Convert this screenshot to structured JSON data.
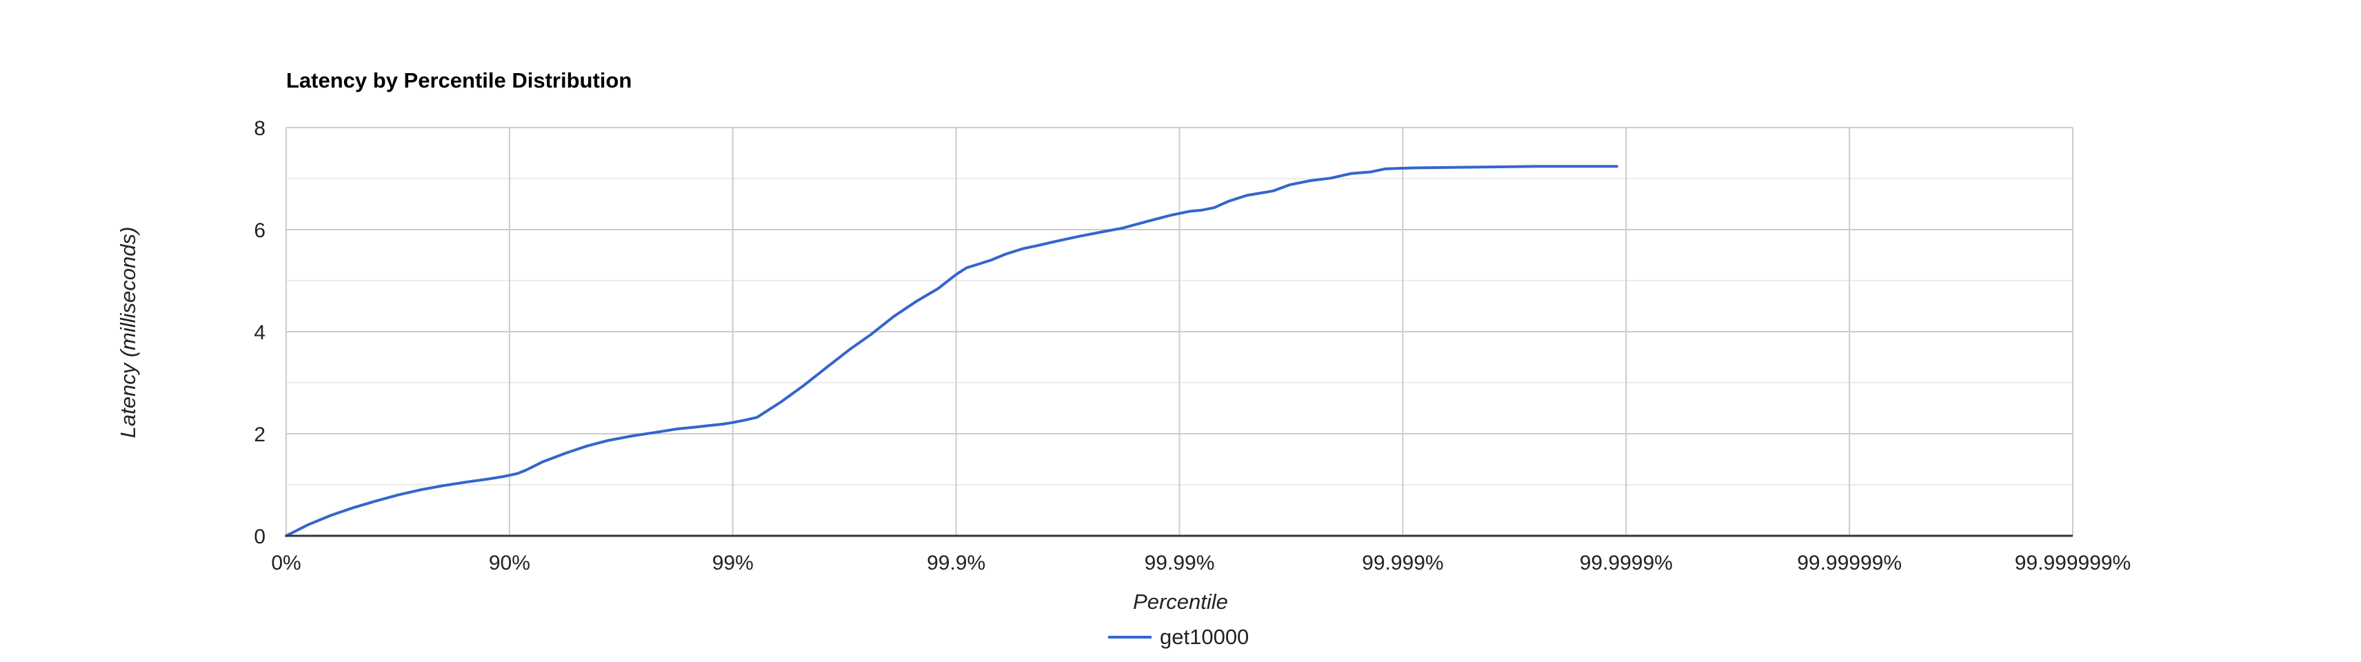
{
  "chart_data": {
    "type": "line",
    "title": "Latency by Percentile Distribution",
    "xlabel": "Percentile",
    "ylabel": "Latency (milliseconds)",
    "x_scale": "log-percentile",
    "x_ticks": [
      "0%",
      "90%",
      "99%",
      "99.9%",
      "99.99%",
      "99.999%",
      "99.9999%",
      "99.99999%",
      "99.999999%"
    ],
    "y_ticks": [
      "0",
      "2",
      "4",
      "6",
      "8"
    ],
    "ylim": [
      0,
      8
    ],
    "grid": true,
    "legend_position": "bottom",
    "colors": {
      "series": "#3366cc",
      "grid_major": "#cccccc",
      "grid_minor": "#ebebeb",
      "baseline": "#333333"
    },
    "series": [
      {
        "name": "get10000",
        "points": [
          [
            "0%",
            0.0
          ],
          [
            "20.6%",
            0.22
          ],
          [
            "36.9%",
            0.4
          ],
          [
            "49.9%",
            0.55
          ],
          [
            "60.2%",
            0.68
          ],
          [
            "68.4%",
            0.8
          ],
          [
            "74.9%",
            0.9
          ],
          [
            "80.0%",
            0.98
          ],
          [
            "84.2%",
            1.05
          ],
          [
            "87.4%",
            1.11
          ],
          [
            "89.3%",
            1.16
          ],
          [
            "90.8%",
            1.22
          ],
          [
            "91.6%",
            1.29
          ],
          [
            "92.9%",
            1.45
          ],
          [
            "94.4%",
            1.62
          ],
          [
            "95.5%",
            1.76
          ],
          [
            "96.4%",
            1.87
          ],
          [
            "97.2%",
            1.96
          ],
          [
            "97.8%",
            2.03
          ],
          [
            "98.2%",
            2.09
          ],
          [
            "98.6%",
            2.14
          ],
          [
            "98.9%",
            2.19
          ],
          [
            "99.0%",
            2.22
          ],
          [
            "99.1%",
            2.26
          ],
          [
            "99.22%",
            2.32
          ],
          [
            "99.39%",
            2.62
          ],
          [
            "99.52%",
            2.95
          ],
          [
            "99.62%",
            3.3
          ],
          [
            "99.70%",
            3.65
          ],
          [
            "99.76%",
            3.95
          ],
          [
            "99.81%",
            4.3
          ],
          [
            "99.85%",
            4.6
          ],
          [
            "99.88%",
            4.85
          ],
          [
            "99.89%",
            4.98
          ],
          [
            "99.90%",
            5.12
          ],
          [
            "99.91%",
            5.25
          ],
          [
            "99.93%",
            5.4
          ],
          [
            "99.94%",
            5.52
          ],
          [
            "99.95%",
            5.63
          ],
          [
            "99.956%",
            5.68
          ],
          [
            "99.965%",
            5.78
          ],
          [
            "99.972%",
            5.87
          ],
          [
            "99.978%",
            5.96
          ],
          [
            "99.982%",
            6.03
          ],
          [
            "99.986%",
            6.16
          ],
          [
            "99.989%",
            6.28
          ],
          [
            "99.991%",
            6.36
          ],
          [
            "99.992%",
            6.38
          ],
          [
            "99.993%",
            6.43
          ],
          [
            "99.994%",
            6.56
          ],
          [
            "99.995%",
            6.67
          ],
          [
            "99.9962%",
            6.76
          ],
          [
            "99.9968%",
            6.88
          ],
          [
            "99.9974%",
            6.96
          ],
          [
            "99.9979%",
            7.01
          ],
          [
            "99.9983%",
            7.1
          ],
          [
            "99.9986%",
            7.13
          ],
          [
            "99.9988%",
            7.19
          ],
          [
            "99.9991%",
            7.21
          ],
          [
            "99.9994%",
            7.22
          ],
          [
            "99.99962%",
            7.23
          ],
          [
            "99.99975%",
            7.24
          ],
          [
            "99.99989%",
            7.24
          ]
        ]
      }
    ]
  }
}
